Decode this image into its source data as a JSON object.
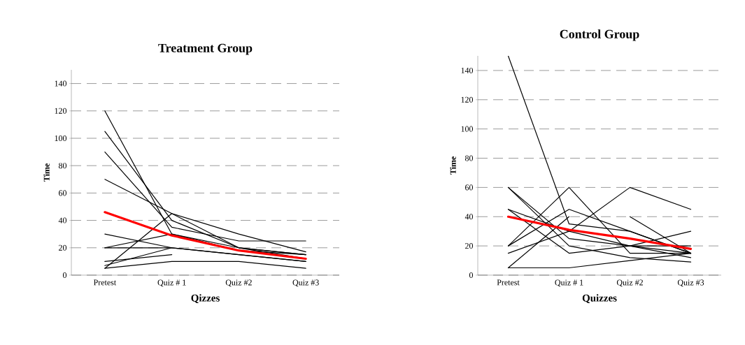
{
  "chart_data": [
    {
      "type": "line",
      "title": "Treatment Group",
      "xlabel": "Qizzes",
      "ylabel": "Time",
      "categories": [
        "Pretest",
        "Quiz # 1",
        "Quiz #2",
        "Quiz #3"
      ],
      "ylim": [
        0,
        150
      ],
      "yticks": [
        0,
        20,
        40,
        60,
        80,
        100,
        120,
        140
      ],
      "grid": "y",
      "marker": "none",
      "line_style": "solid",
      "series": [
        {
          "color": "#000000",
          "values": [
            120,
            30,
            18,
            15
          ]
        },
        {
          "color": "#000000",
          "values": [
            105,
            40,
            20,
            15
          ]
        },
        {
          "color": "#000000",
          "values": [
            90,
            35,
            25,
            25
          ]
        },
        {
          "color": "#000000",
          "values": [
            70,
            45,
            30,
            17
          ]
        },
        {
          "color": "#000000",
          "values": [
            30,
            20,
            15,
            10
          ]
        },
        {
          "color": "#000000",
          "values": [
            20,
            30,
            20,
            12
          ]
        },
        {
          "color": "#000000",
          "values": [
            20,
            20,
            15,
            10
          ]
        },
        {
          "color": "#000000",
          "values": [
            10,
            15,
            null,
            null
          ]
        },
        {
          "color": "#000000",
          "values": [
            7,
            20,
            null,
            null
          ]
        },
        {
          "color": "#000000",
          "values": [
            5,
            45,
            20,
            15
          ]
        },
        {
          "color": "#000000",
          "values": [
            5,
            10,
            10,
            5
          ]
        },
        {
          "color": "#ff0000",
          "values": [
            46,
            29,
            18,
            12
          ]
        }
      ]
    },
    {
      "type": "line",
      "title": "Control Group",
      "xlabel": "Quizzes",
      "ylabel": "Time",
      "categories": [
        "Pretest",
        "Quiz # 1",
        "Quiz #2",
        "Quiz #3"
      ],
      "ylim": [
        0,
        150
      ],
      "yticks": [
        0,
        20,
        40,
        60,
        80,
        100,
        120,
        140
      ],
      "grid": "y",
      "marker": "none",
      "line_style": "solid",
      "series": [
        {
          "color": "#000000",
          "values": [
            150,
            35,
            30,
            15
          ]
        },
        {
          "color": "#000000",
          "values": [
            60,
            25,
            20,
            15
          ]
        },
        {
          "color": "#000000",
          "values": [
            60,
            20,
            12,
            9
          ]
        },
        {
          "color": "#000000",
          "values": [
            45,
            30,
            20,
            12
          ]
        },
        {
          "color": "#000000",
          "values": [
            45,
            15,
            20,
            20
          ]
        },
        {
          "color": "#000000",
          "values": [
            20,
            60,
            15,
            15
          ]
        },
        {
          "color": "#000000",
          "values": [
            20,
            45,
            30,
            15
          ]
        },
        {
          "color": "#000000",
          "values": [
            15,
            30,
            60,
            45
          ]
        },
        {
          "color": "#000000",
          "values": [
            5,
            40,
            null,
            null
          ]
        },
        {
          "color": "#000000",
          "values": [
            5,
            5,
            10,
            15
          ]
        },
        {
          "color": "#000000",
          "values": [
            null,
            null,
            40,
            15
          ]
        },
        {
          "color": "#000000",
          "values": [
            null,
            null,
            20,
            30
          ]
        },
        {
          "color": "#ff0000",
          "values": [
            40,
            31,
            25,
            18
          ]
        }
      ]
    }
  ]
}
